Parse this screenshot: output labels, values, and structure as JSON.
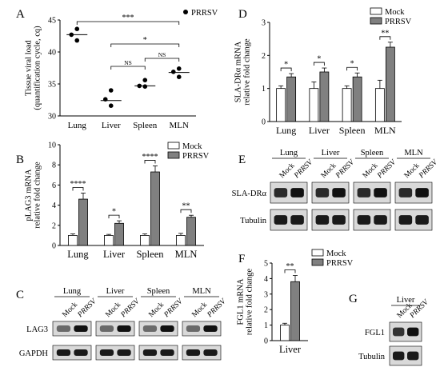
{
  "figure": {
    "panels": {
      "A": "A",
      "B": "B",
      "C": "C",
      "D": "D",
      "E": "E",
      "F": "F",
      "G": "G"
    },
    "colors": {
      "mock": "#ffffff",
      "prrsv": "#808080",
      "dot": "#000000"
    }
  },
  "chart_data": [
    {
      "panel": "A",
      "type": "scatter",
      "ylabel": "Tissue viral load\n(quantification cycle, cq)",
      "ylim": [
        30,
        45
      ],
      "yticks": [
        "30",
        "35",
        "40",
        "45"
      ],
      "categories": [
        "Lung",
        "Liver",
        "Spleen",
        "MLN"
      ],
      "legend": [
        "PRRSV"
      ],
      "points": [
        {
          "cat": "Lung",
          "values": [
            43.6,
            42.7,
            41.8
          ],
          "mean": 42.7
        },
        {
          "cat": "Liver",
          "values": [
            34.0,
            32.6,
            31.6
          ],
          "mean": 32.4
        },
        {
          "cat": "Spleen",
          "values": [
            35.6,
            34.7,
            34.6
          ],
          "mean": 34.7
        },
        {
          "cat": "MLN",
          "values": [
            37.4,
            36.9,
            36.1
          ],
          "mean": 36.8
        }
      ],
      "significance": [
        {
          "from": "Lung",
          "to": "MLN",
          "label": "***"
        },
        {
          "from": "Liver",
          "to": "MLN",
          "label": "*"
        },
        {
          "from": "Liver",
          "to": "Spleen",
          "label": "NS"
        },
        {
          "from": "Spleen",
          "to": "MLN",
          "label": "NS"
        }
      ]
    },
    {
      "panel": "B",
      "type": "bar",
      "ylabel": "pLAG3 mRNA\nrelative fold change",
      "ylim": [
        0,
        10
      ],
      "yticks": [
        "0",
        "2",
        "4",
        "6",
        "8",
        "10"
      ],
      "categories": [
        "Lung",
        "Liver",
        "Spleen",
        "MLN"
      ],
      "legend": [
        "Mock",
        "PRRSV"
      ],
      "series": [
        {
          "name": "Mock",
          "values": [
            1.0,
            1.0,
            1.0,
            1.0
          ],
          "errors": [
            0.15,
            0.1,
            0.15,
            0.2
          ]
        },
        {
          "name": "PRRSV",
          "values": [
            4.6,
            2.2,
            7.3,
            2.8
          ],
          "errors": [
            0.6,
            0.25,
            0.6,
            0.2
          ]
        }
      ],
      "significance": [
        "****",
        "*",
        "****",
        "**"
      ]
    },
    {
      "panel": "D",
      "type": "bar",
      "ylabel": "SLA-DRα mRNA\nrelative fold change",
      "ylim": [
        0,
        3
      ],
      "yticks": [
        "0",
        "1",
        "2",
        "3"
      ],
      "categories": [
        "Lung",
        "Liver",
        "Spleen",
        "MLN"
      ],
      "legend": [
        "Mock",
        "PRRSV"
      ],
      "series": [
        {
          "name": "Mock",
          "values": [
            1.0,
            1.0,
            1.0,
            1.0
          ],
          "errors": [
            0.08,
            0.2,
            0.08,
            0.25
          ]
        },
        {
          "name": "PRRSV",
          "values": [
            1.35,
            1.5,
            1.35,
            2.25
          ],
          "errors": [
            0.1,
            0.12,
            0.12,
            0.15
          ]
        }
      ],
      "significance": [
        "*",
        "*",
        "*",
        "**"
      ]
    },
    {
      "panel": "F",
      "type": "bar",
      "ylabel": "FGL1 mRNA\nrelative fold change",
      "ylim": [
        0,
        5
      ],
      "yticks": [
        "0",
        "1",
        "2",
        "3",
        "4",
        "5"
      ],
      "categories": [
        "Liver"
      ],
      "legend": [
        "Mock",
        "PRRSV"
      ],
      "series": [
        {
          "name": "Mock",
          "values": [
            1.0
          ],
          "errors": [
            0.12
          ]
        },
        {
          "name": "PRRSV",
          "values": [
            3.8
          ],
          "errors": [
            0.4
          ]
        }
      ],
      "significance": [
        "**"
      ]
    }
  ],
  "blots": {
    "C": {
      "groups": [
        "Lung",
        "Liver",
        "Spleen",
        "MLN"
      ],
      "lanes": [
        "Mock",
        "PRRSV"
      ],
      "rows": [
        "LAG3",
        "GAPDH"
      ]
    },
    "E": {
      "groups": [
        "Lung",
        "Liver",
        "Spleen",
        "MLN"
      ],
      "lanes": [
        "Mock",
        "PRRSV"
      ],
      "rows": [
        "SLA-DRα",
        "Tubulin"
      ]
    },
    "G": {
      "groups": [
        "Liver"
      ],
      "lanes": [
        "Mock",
        "PRRSV"
      ],
      "rows": [
        "FGL1",
        "Tubulin"
      ]
    }
  }
}
